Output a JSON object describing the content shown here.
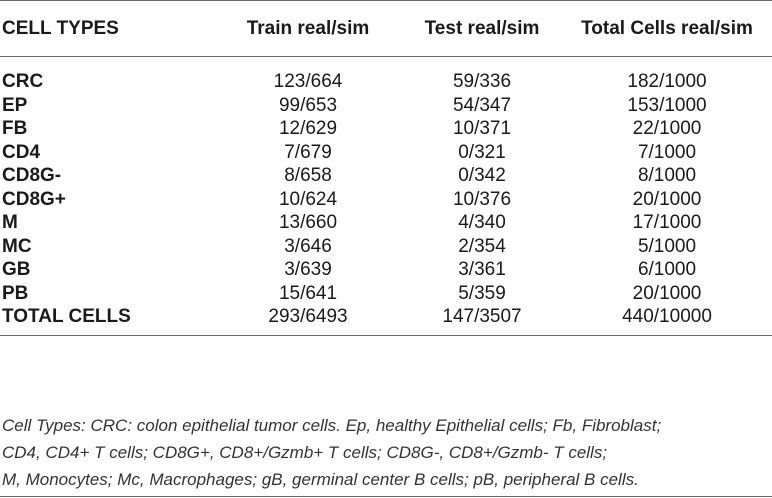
{
  "table": {
    "headers": [
      "CELL TYPES",
      "Train real/sim",
      "Test real/sim",
      "Total Cells real/sim"
    ],
    "rows": [
      [
        "CRC",
        "123/664",
        "59/336",
        "182/1000"
      ],
      [
        "EP",
        "99/653",
        "54/347",
        "153/1000"
      ],
      [
        "FB",
        "12/629",
        "10/371",
        "22/1000"
      ],
      [
        "CD4",
        "7/679",
        "0/321",
        "7/1000"
      ],
      [
        "CD8G-",
        "8/658",
        "0/342",
        "8/1000"
      ],
      [
        "CD8G+",
        "10/624",
        "10/376",
        "20/1000"
      ],
      [
        "M",
        "13/660",
        "4/340",
        "17/1000"
      ],
      [
        "MC",
        "3/646",
        "2/354",
        "5/1000"
      ],
      [
        "GB",
        "3/639",
        "3/361",
        "6/1000"
      ],
      [
        "PB",
        "15/641",
        "5/359",
        "20/1000"
      ],
      [
        "TOTAL CELLS",
        "293/6493",
        "147/3507",
        "440/10000"
      ]
    ]
  },
  "footnote": {
    "lines": [
      "Cell Types: CRC: colon epithelial tumor cells. Ep, healthy Epithelial cells; Fb, Fibroblast;",
      "CD4, CD4+ T cells; CD8G+, CD8+/Gzmb+ T cells; CD8G-, CD8+/Gzmb- T cells;",
      "M, Monocytes; Mc, Macrophages; gB, germinal center B cells; pB, peripheral B cells."
    ]
  }
}
